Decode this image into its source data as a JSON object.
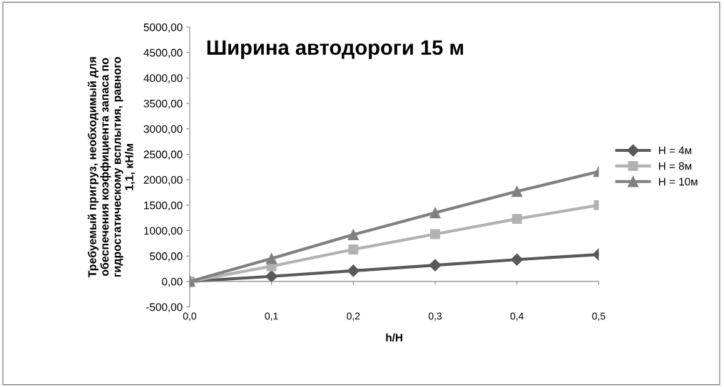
{
  "chart_data": {
    "type": "line",
    "title": "Ширина автодороги 15 м",
    "xlabel": "h/H",
    "ylabel": "Требуемый пригруз, необходимый для\nобеспечения коэффициента запаса по\nгидростатическому всплытия, равного\n1,1, кН/м",
    "categories": [
      "0,0",
      "0,1",
      "0,2",
      "0,3",
      "0,4",
      "0,5"
    ],
    "series": [
      {
        "name": "H = 4м",
        "color": "#595959",
        "marker": "diamond",
        "values": [
          0,
          100,
          210,
          320,
          430,
          530
        ]
      },
      {
        "name": "H = 8м",
        "color": "#b2b2b2",
        "marker": "square",
        "values": [
          0,
          300,
          630,
          930,
          1230,
          1500
        ]
      },
      {
        "name": "H = 10м",
        "color": "#808080",
        "marker": "triangle",
        "values": [
          0,
          450,
          920,
          1350,
          1770,
          2160
        ]
      }
    ],
    "ylim": [
      -500,
      5000
    ],
    "yticks": [
      {
        "value": -500,
        "label": "-500,00"
      },
      {
        "value": 0,
        "label": "0,00"
      },
      {
        "value": 500,
        "label": "500,00"
      },
      {
        "value": 1000,
        "label": "1000,00"
      },
      {
        "value": 1500,
        "label": "1500,00"
      },
      {
        "value": 2000,
        "label": "2000,00"
      },
      {
        "value": 2500,
        "label": "2500,00"
      },
      {
        "value": 3000,
        "label": "3000,00"
      },
      {
        "value": 3500,
        "label": "3500,00"
      },
      {
        "value": 4000,
        "label": "4000,00"
      },
      {
        "value": 4500,
        "label": "4500,00"
      },
      {
        "value": 5000,
        "label": "5000,00"
      }
    ],
    "legend": "right",
    "line_style": "solid"
  }
}
